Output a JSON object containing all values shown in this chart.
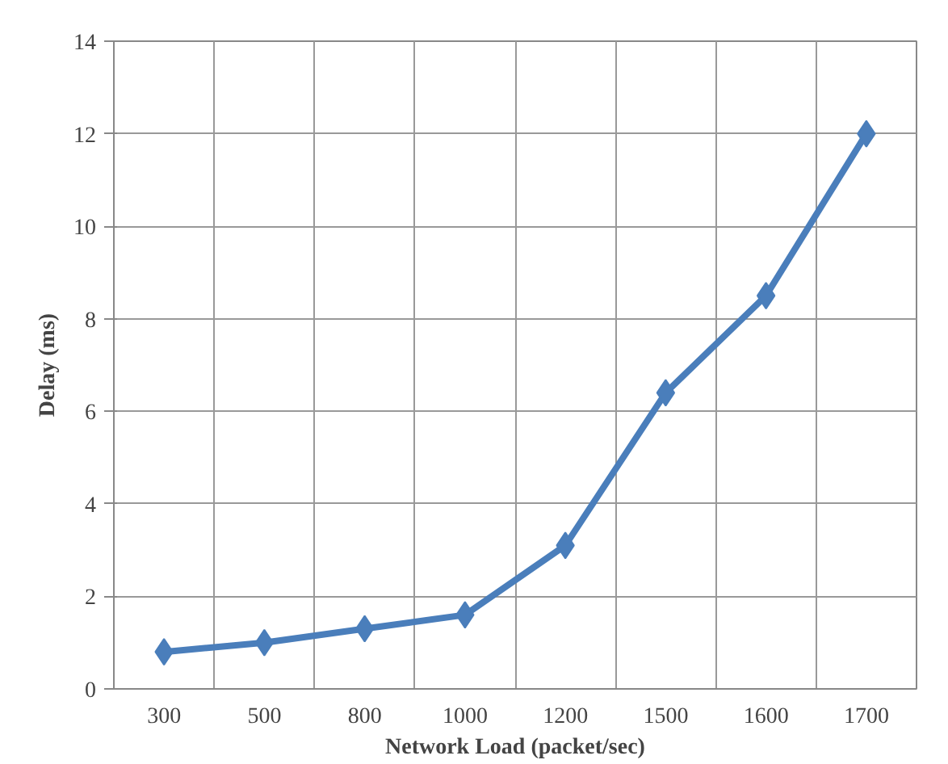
{
  "chart_data": {
    "type": "line",
    "xlabel": "Network Load (packet/sec)",
    "ylabel": "Delay (ms)",
    "categories": [
      "300",
      "500",
      "800",
      "1000",
      "1200",
      "1500",
      "1600",
      "1700"
    ],
    "series": [
      {
        "color": "#4a7ebb",
        "values": [
          0.8,
          1.0,
          1.3,
          1.6,
          3.1,
          6.4,
          8.5,
          12.0
        ]
      }
    ],
    "ylim": [
      0,
      14
    ],
    "yticks": [
      0,
      2,
      4,
      6,
      8,
      10,
      12,
      14
    ],
    "grid": true,
    "marker": "diamond",
    "line_style": "solid"
  }
}
